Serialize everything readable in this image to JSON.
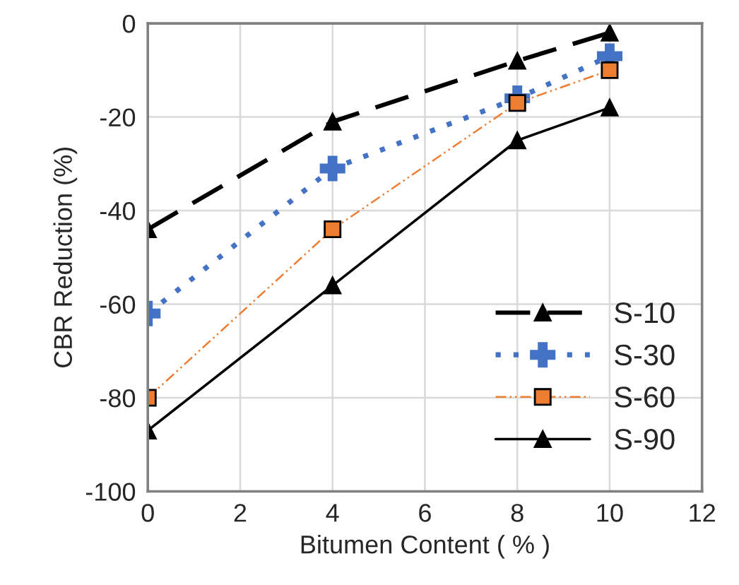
{
  "chart_data": {
    "type": "line",
    "xlabel": "Bitumen Content ( % )",
    "ylabel": "CBR Reduction (%)",
    "x": [
      0,
      4,
      8,
      10
    ],
    "series": [
      {
        "name": "S-10",
        "color": "#000000",
        "values": [
          -44,
          -21,
          -8,
          -2
        ],
        "marker": "triangle",
        "line_style": "dashed"
      },
      {
        "name": "S-30",
        "color": "#4472c4",
        "values": [
          -62,
          -31,
          -16,
          -7
        ],
        "marker": "cross",
        "line_style": "dotted"
      },
      {
        "name": "S-60",
        "color": "#ed7d31",
        "values": [
          -80,
          -44,
          -17,
          -10
        ],
        "marker": "square",
        "line_style": "dashdot"
      },
      {
        "name": "S-90",
        "color": "#000000",
        "values": [
          -87,
          -56,
          -25,
          -18
        ],
        "marker": "triangle",
        "line_style": "solid"
      }
    ],
    "xlim": [
      0,
      12
    ],
    "xticks": [
      0,
      2,
      4,
      6,
      8,
      10,
      12
    ],
    "ylim": [
      -100,
      0
    ],
    "yticks": [
      -100,
      -80,
      -60,
      -40,
      -20,
      0
    ],
    "grid": true,
    "legend": "bottom right"
  }
}
